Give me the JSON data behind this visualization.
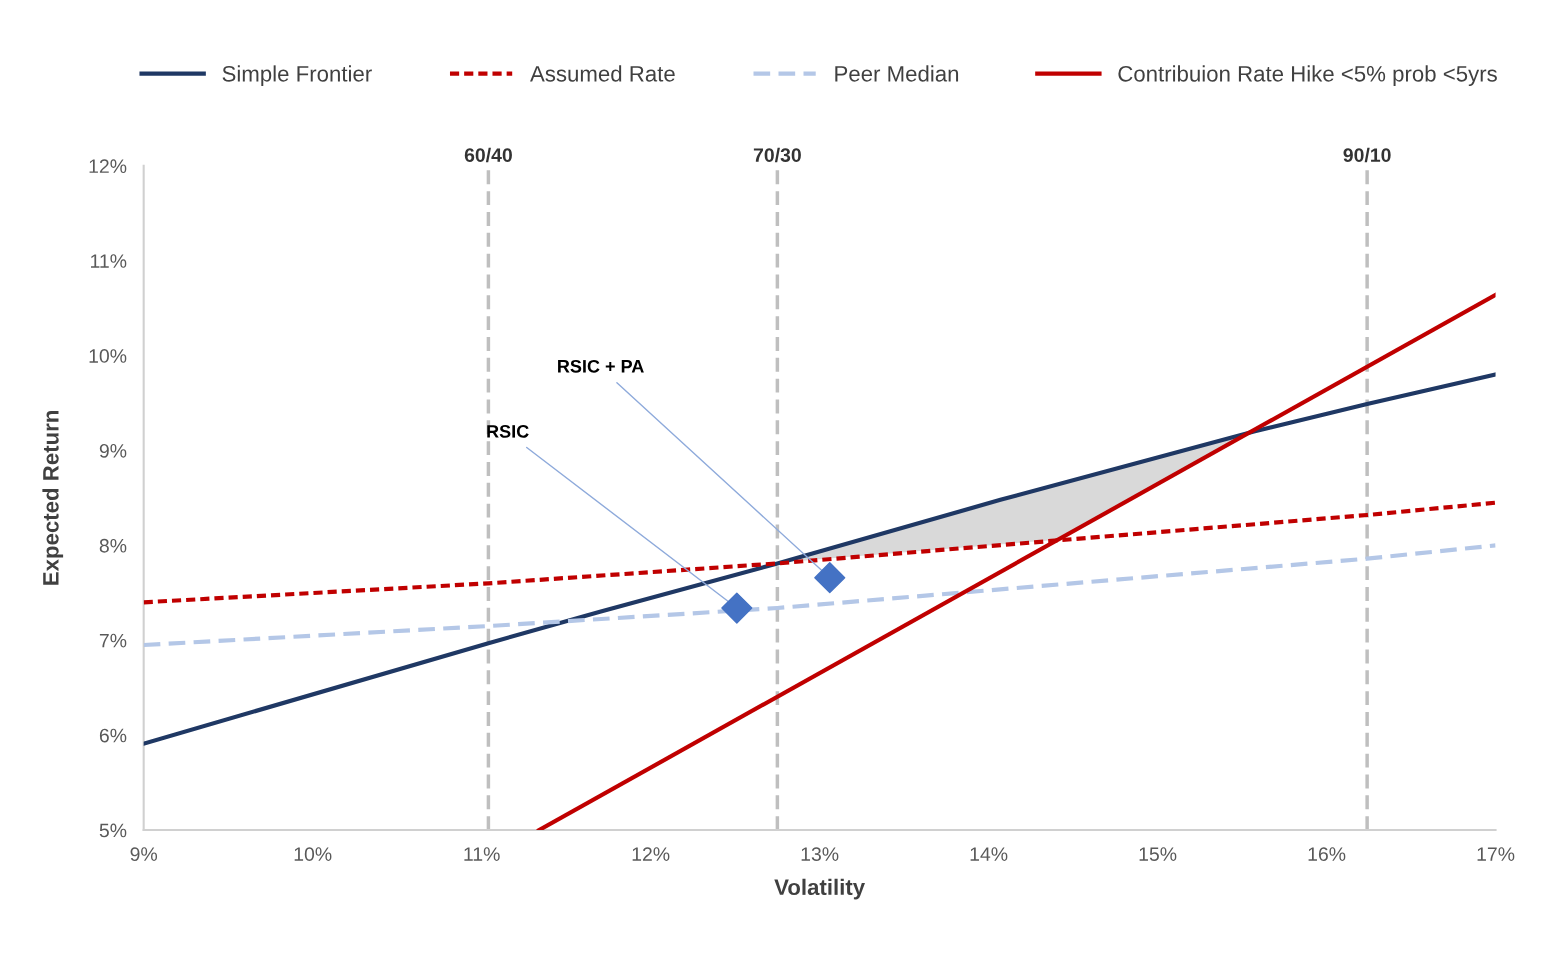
{
  "chart_data": {
    "type": "line",
    "xlabel": "Volatility",
    "ylabel": "Expected Return",
    "xlim": [
      9,
      17
    ],
    "xticks": [
      {
        "value": 9,
        "label": "9%"
      },
      {
        "value": 10,
        "label": "10%"
      },
      {
        "value": 11,
        "label": "11%"
      },
      {
        "value": 12,
        "label": "12%"
      },
      {
        "value": 13,
        "label": "13%"
      },
      {
        "value": 14,
        "label": "14%"
      },
      {
        "value": 15,
        "label": "15%"
      },
      {
        "value": 16,
        "label": "16%"
      },
      {
        "value": 17,
        "label": "17%"
      }
    ],
    "ylim": [
      5,
      12
    ],
    "yticks": [
      {
        "value": 5,
        "label": "5%"
      },
      {
        "value": 6,
        "label": "6%"
      },
      {
        "value": 7,
        "label": "7%"
      },
      {
        "value": 8,
        "label": "8%"
      },
      {
        "value": 9,
        "label": "9%"
      },
      {
        "value": 10,
        "label": "10%"
      },
      {
        "value": 11,
        "label": "11%"
      },
      {
        "value": 12,
        "label": "12%"
      }
    ],
    "grid": false,
    "legend": "top",
    "series": [
      {
        "type": "line",
        "color": "#d9d9d9",
        "x": [
          12.75,
          14.39,
          15.57
        ],
        "values": [
          null,
          null,
          null
        ],
        "upper": [
          7.81,
          8.63,
          9.2
        ],
        "lower": [
          7.81,
          8.05,
          9.2
        ]
      },
      {
        "name": "Simple Frontier",
        "color": "#1f3864",
        "line_style": "solid",
        "x": [
          9,
          11.04,
          11.7,
          12.75,
          14.07,
          15.57,
          16.24,
          17
        ],
        "values": [
          5.91,
          6.97,
          7.3,
          7.81,
          8.48,
          9.2,
          9.49,
          9.8
        ]
      },
      {
        "name": "Assumed Rate",
        "color": "#c00000",
        "line_style": "dotted",
        "x": [
          9,
          11.04,
          12.75,
          14.39,
          16.24,
          17
        ],
        "values": [
          7.4,
          7.6,
          7.81,
          8.05,
          8.32,
          8.45
        ]
      },
      {
        "name": "Peer Median",
        "color": "#b4c7e7",
        "line_style": "dashed",
        "x": [
          9,
          11.04,
          12.75,
          16.24,
          17
        ],
        "values": [
          6.95,
          7.15,
          7.34,
          7.86,
          8.0
        ]
      },
      {
        "name": "Contribuion Rate Hike <5% prob <5yrs",
        "color": "#c00000",
        "line_style": "solid",
        "x": [
          11.34,
          17
        ],
        "values": [
          5,
          10.64
        ]
      },
      {
        "type": "scatter",
        "color": "#4472c4",
        "marker": "diamond",
        "x": [
          12.51,
          13.06
        ],
        "values": [
          7.34,
          7.66
        ]
      }
    ],
    "ref_lines": [
      {
        "axis": "x",
        "value": 11.04,
        "color": "#bfbfbf",
        "line_style": "dashed"
      },
      {
        "axis": "x",
        "value": 12.75,
        "color": "#bfbfbf",
        "line_style": "dashed"
      },
      {
        "axis": "x",
        "value": 16.24,
        "color": "#bfbfbf",
        "line_style": "dashed"
      }
    ],
    "annotations": [
      {
        "text": "60/40",
        "x": 11.04,
        "y": 12
      },
      {
        "text": "70/30",
        "x": 12.75,
        "y": 12
      },
      {
        "text": "90/10",
        "x": 16.24,
        "y": 12
      },
      {
        "text": "RSIC",
        "x": 12.51,
        "y": 7.34
      },
      {
        "text": "RSIC + PA",
        "x": 13.06,
        "y": 7.66
      }
    ]
  }
}
